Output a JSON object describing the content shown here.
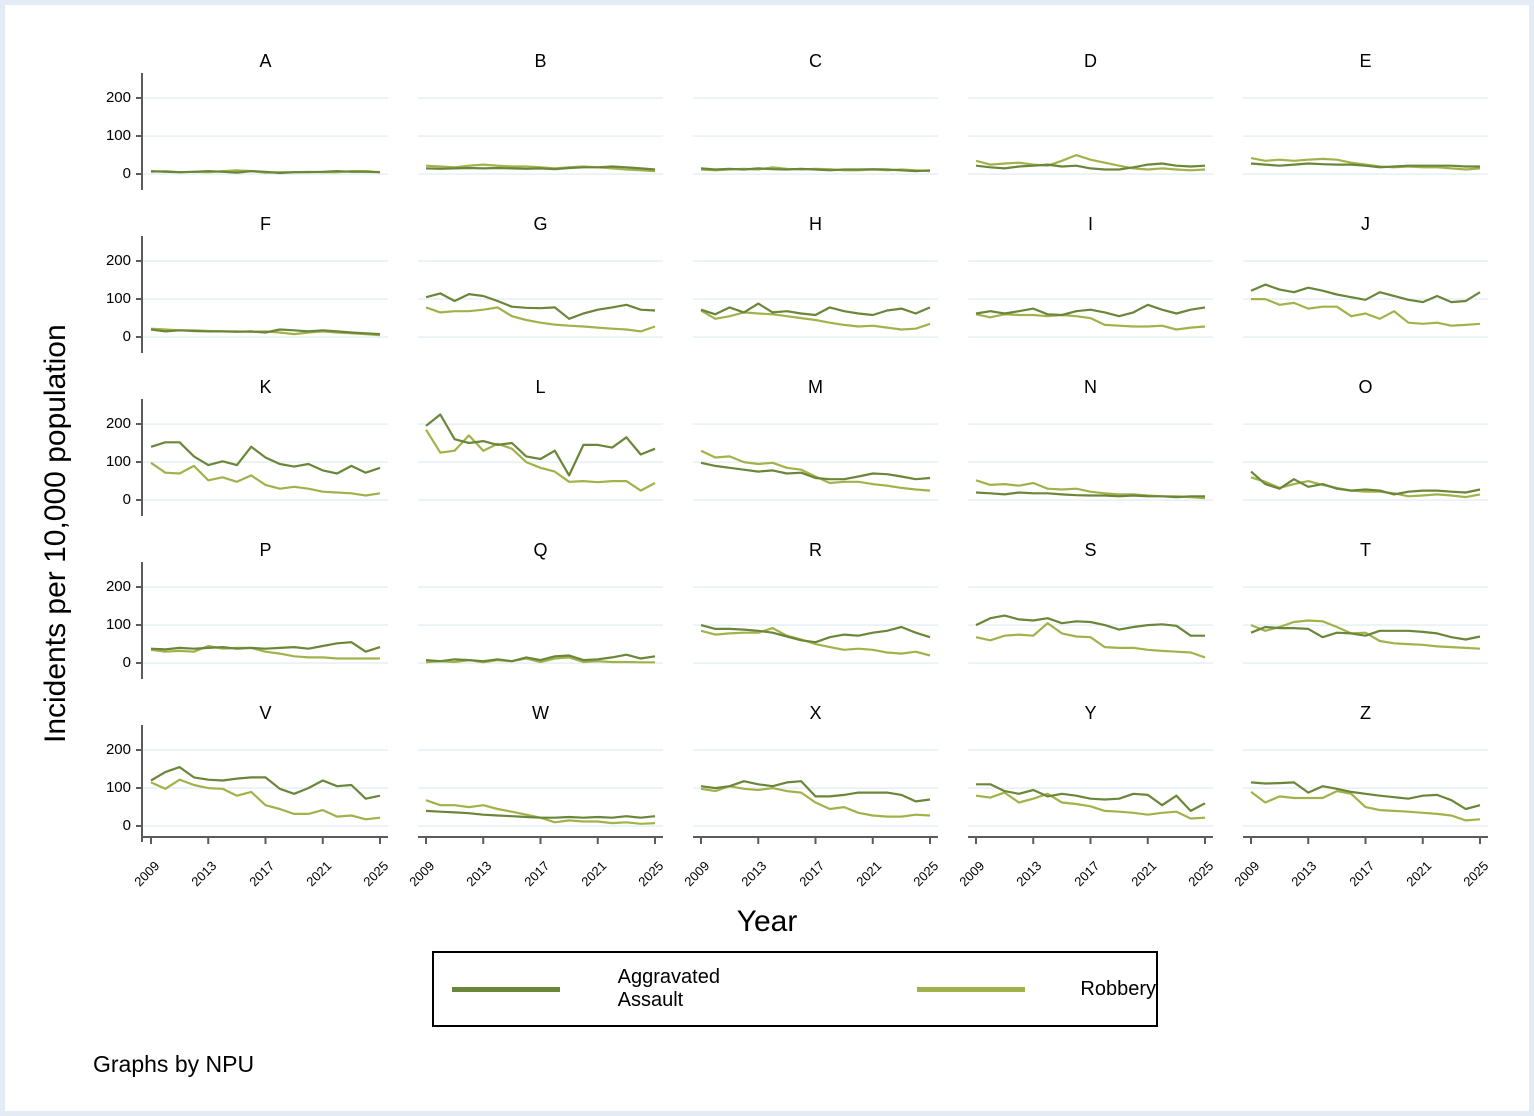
{
  "note": "Graphs by NPU",
  "chart_data": {
    "type": "line",
    "small_multiples": true,
    "facet_by": "NPU",
    "title": "",
    "xlabel": "Year",
    "ylabel": "Incidents per 10,000 population",
    "x": [
      2009,
      2010,
      2011,
      2012,
      2013,
      2014,
      2015,
      2016,
      2017,
      2018,
      2019,
      2020,
      2021,
      2022,
      2023,
      2024,
      2025
    ],
    "xticks": [
      2009,
      2013,
      2017,
      2021,
      2025
    ],
    "yticks": [
      0,
      100,
      200
    ],
    "ylim": [
      -26,
      250
    ],
    "grid": "horizontal",
    "legend": {
      "position": "bottom"
    },
    "series_meta": [
      {
        "name": "Aggravated Assault",
        "color": "#6a8639"
      },
      {
        "name": "Robbery",
        "color": "#a2b24b"
      }
    ],
    "panels": [
      {
        "label": "A",
        "aggravated_assault": [
          8,
          6,
          5,
          6,
          8,
          6,
          4,
          8,
          6,
          3,
          5,
          5,
          6,
          8,
          6,
          6,
          5
        ],
        "robbery": [
          6,
          8,
          5,
          6,
          5,
          8,
          10,
          8,
          4,
          5,
          5,
          6,
          5,
          5,
          8,
          8,
          5
        ]
      },
      {
        "label": "B",
        "aggravated_assault": [
          15,
          14,
          15,
          16,
          15,
          16,
          15,
          14,
          15,
          13,
          16,
          18,
          18,
          20,
          18,
          15,
          12
        ],
        "robbery": [
          22,
          20,
          18,
          22,
          25,
          22,
          20,
          20,
          18,
          15,
          18,
          20,
          18,
          15,
          12,
          10,
          8
        ]
      },
      {
        "label": "C",
        "aggravated_assault": [
          15,
          12,
          14,
          12,
          15,
          13,
          12,
          14,
          12,
          10,
          12,
          12,
          13,
          12,
          10,
          8,
          10
        ],
        "robbery": [
          12,
          10,
          12,
          14,
          12,
          18,
          14,
          12,
          14,
          13,
          10,
          10,
          12,
          10,
          12,
          10,
          8
        ]
      },
      {
        "label": "D",
        "aggravated_assault": [
          22,
          18,
          15,
          20,
          22,
          25,
          20,
          22,
          15,
          12,
          12,
          18,
          25,
          28,
          22,
          20,
          22
        ],
        "robbery": [
          35,
          25,
          28,
          30,
          25,
          22,
          35,
          50,
          38,
          30,
          22,
          15,
          12,
          15,
          12,
          10,
          12
        ]
      },
      {
        "label": "E",
        "aggravated_assault": [
          28,
          25,
          22,
          25,
          28,
          26,
          25,
          25,
          22,
          18,
          20,
          22,
          22,
          22,
          22,
          20,
          20
        ],
        "robbery": [
          42,
          35,
          38,
          35,
          38,
          40,
          38,
          30,
          25,
          20,
          18,
          20,
          18,
          18,
          15,
          12,
          15
        ]
      },
      {
        "label": "F",
        "aggravated_assault": [
          20,
          15,
          18,
          16,
          15,
          15,
          14,
          15,
          12,
          20,
          18,
          15,
          18,
          15,
          12,
          10,
          8
        ],
        "robbery": [
          22,
          20,
          18,
          18,
          16,
          15,
          15,
          14,
          15,
          12,
          8,
          12,
          15,
          12,
          10,
          8,
          5
        ]
      },
      {
        "label": "G",
        "aggravated_assault": [
          105,
          115,
          95,
          113,
          108,
          95,
          80,
          77,
          76,
          78,
          48,
          62,
          72,
          78,
          85,
          72,
          70
        ],
        "robbery": [
          78,
          65,
          68,
          68,
          72,
          78,
          55,
          45,
          38,
          33,
          30,
          28,
          25,
          22,
          20,
          15,
          28
        ]
      },
      {
        "label": "H",
        "aggravated_assault": [
          72,
          60,
          78,
          65,
          88,
          65,
          68,
          62,
          58,
          78,
          68,
          62,
          58,
          70,
          75,
          62,
          78
        ],
        "robbery": [
          70,
          48,
          55,
          65,
          62,
          60,
          55,
          50,
          45,
          38,
          32,
          28,
          30,
          25,
          20,
          22,
          35
        ]
      },
      {
        "label": "I",
        "aggravated_assault": [
          62,
          68,
          62,
          68,
          75,
          60,
          58,
          68,
          72,
          65,
          55,
          65,
          85,
          72,
          62,
          72,
          78
        ],
        "robbery": [
          60,
          52,
          60,
          58,
          58,
          55,
          58,
          55,
          50,
          32,
          30,
          28,
          28,
          30,
          20,
          25,
          28
        ]
      },
      {
        "label": "J",
        "aggravated_assault": [
          122,
          138,
          125,
          118,
          130,
          122,
          112,
          105,
          98,
          118,
          108,
          98,
          92,
          108,
          92,
          95,
          118
        ],
        "robbery": [
          100,
          100,
          85,
          90,
          75,
          80,
          80,
          55,
          62,
          48,
          68,
          38,
          35,
          38,
          30,
          32,
          35
        ]
      },
      {
        "label": "K",
        "aggravated_assault": [
          140,
          152,
          152,
          115,
          92,
          102,
          92,
          140,
          112,
          95,
          88,
          95,
          78,
          70,
          90,
          72,
          85
        ],
        "robbery": [
          98,
          72,
          70,
          90,
          52,
          60,
          48,
          65,
          40,
          30,
          35,
          30,
          22,
          20,
          18,
          12,
          18
        ]
      },
      {
        "label": "L",
        "aggravated_assault": [
          195,
          225,
          160,
          150,
          155,
          145,
          150,
          115,
          108,
          130,
          65,
          145,
          145,
          138,
          165,
          120,
          135
        ],
        "robbery": [
          185,
          125,
          130,
          170,
          130,
          148,
          135,
          100,
          85,
          75,
          48,
          50,
          47,
          50,
          50,
          25,
          45
        ]
      },
      {
        "label": "M",
        "aggravated_assault": [
          98,
          90,
          85,
          80,
          75,
          78,
          70,
          72,
          58,
          55,
          55,
          62,
          70,
          68,
          62,
          55,
          58
        ],
        "robbery": [
          130,
          112,
          115,
          100,
          95,
          98,
          85,
          80,
          62,
          45,
          48,
          48,
          42,
          38,
          32,
          28,
          25
        ]
      },
      {
        "label": "N",
        "aggravated_assault": [
          20,
          18,
          15,
          20,
          18,
          18,
          15,
          13,
          12,
          12,
          10,
          12,
          10,
          10,
          8,
          10,
          10
        ],
        "robbery": [
          52,
          40,
          42,
          38,
          45,
          30,
          28,
          30,
          22,
          18,
          15,
          15,
          12,
          10,
          10,
          8,
          5
        ]
      },
      {
        "label": "O",
        "aggravated_assault": [
          75,
          42,
          30,
          55,
          35,
          42,
          30,
          25,
          28,
          25,
          15,
          22,
          25,
          25,
          22,
          20,
          28
        ],
        "robbery": [
          60,
          48,
          32,
          42,
          50,
          40,
          32,
          25,
          22,
          22,
          18,
          10,
          12,
          15,
          12,
          8,
          15
        ]
      },
      {
        "label": "P",
        "aggravated_assault": [
          38,
          36,
          40,
          38,
          40,
          42,
          38,
          40,
          38,
          40,
          42,
          38,
          45,
          52,
          55,
          30,
          42
        ],
        "robbery": [
          35,
          30,
          32,
          30,
          45,
          38,
          40,
          40,
          30,
          25,
          18,
          15,
          15,
          12,
          12,
          12,
          12
        ]
      },
      {
        "label": "Q",
        "aggravated_assault": [
          8,
          5,
          10,
          8,
          5,
          10,
          5,
          15,
          8,
          18,
          20,
          8,
          10,
          15,
          22,
          12,
          18
        ],
        "robbery": [
          2,
          5,
          3,
          8,
          2,
          8,
          5,
          12,
          3,
          12,
          15,
          3,
          5,
          3,
          3,
          2,
          2
        ]
      },
      {
        "label": "R",
        "aggravated_assault": [
          100,
          90,
          90,
          88,
          85,
          80,
          70,
          60,
          55,
          68,
          75,
          72,
          80,
          85,
          95,
          80,
          68
        ],
        "robbery": [
          85,
          75,
          78,
          80,
          80,
          92,
          72,
          62,
          50,
          42,
          35,
          38,
          35,
          28,
          25,
          30,
          20
        ]
      },
      {
        "label": "S",
        "aggravated_assault": [
          100,
          118,
          125,
          115,
          112,
          118,
          105,
          110,
          108,
          100,
          88,
          95,
          100,
          102,
          98,
          72,
          72
        ],
        "robbery": [
          68,
          60,
          72,
          75,
          72,
          105,
          78,
          70,
          68,
          42,
          40,
          40,
          35,
          32,
          30,
          28,
          15
        ]
      },
      {
        "label": "T",
        "aggravated_assault": [
          80,
          95,
          92,
          92,
          90,
          68,
          80,
          78,
          72,
          85,
          85,
          85,
          82,
          78,
          68,
          62,
          70
        ],
        "robbery": [
          100,
          85,
          95,
          108,
          112,
          110,
          95,
          78,
          80,
          58,
          52,
          50,
          48,
          44,
          42,
          40,
          38
        ]
      },
      {
        "label": "V",
        "aggravated_assault": [
          120,
          142,
          155,
          128,
          122,
          120,
          125,
          128,
          128,
          98,
          85,
          100,
          120,
          105,
          108,
          72,
          80
        ],
        "robbery": [
          115,
          98,
          122,
          108,
          100,
          98,
          80,
          90,
          55,
          45,
          32,
          32,
          42,
          25,
          28,
          18,
          22
        ]
      },
      {
        "label": "W",
        "aggravated_assault": [
          40,
          38,
          36,
          34,
          30,
          28,
          26,
          24,
          22,
          22,
          24,
          22,
          24,
          22,
          26,
          22,
          26
        ],
        "robbery": [
          68,
          55,
          55,
          50,
          55,
          45,
          38,
          30,
          22,
          10,
          15,
          12,
          12,
          8,
          10,
          6,
          8
        ]
      },
      {
        "label": "X",
        "aggravated_assault": [
          105,
          100,
          105,
          118,
          110,
          105,
          115,
          118,
          78,
          78,
          82,
          88,
          88,
          88,
          82,
          65,
          70
        ],
        "robbery": [
          98,
          92,
          105,
          98,
          95,
          100,
          92,
          88,
          62,
          45,
          50,
          35,
          28,
          25,
          25,
          30,
          28
        ]
      },
      {
        "label": "Y",
        "aggravated_assault": [
          110,
          110,
          92,
          85,
          95,
          78,
          85,
          80,
          72,
          70,
          72,
          85,
          82,
          55,
          80,
          40,
          60
        ],
        "robbery": [
          80,
          75,
          88,
          62,
          72,
          85,
          62,
          58,
          52,
          40,
          38,
          35,
          30,
          35,
          38,
          20,
          22
        ]
      },
      {
        "label": "Z",
        "aggravated_assault": [
          115,
          112,
          113,
          115,
          88,
          105,
          98,
          90,
          85,
          80,
          76,
          72,
          80,
          82,
          68,
          45,
          55
        ],
        "robbery": [
          90,
          62,
          78,
          74,
          74,
          74,
          92,
          85,
          50,
          42,
          40,
          38,
          35,
          32,
          28,
          15,
          18
        ]
      }
    ]
  }
}
